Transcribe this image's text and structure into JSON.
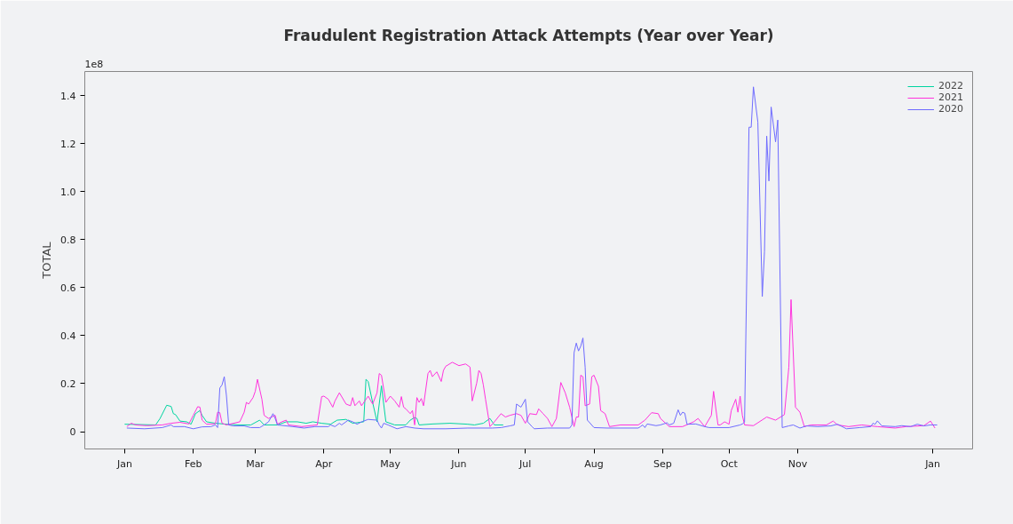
{
  "chart_data": {
    "type": "line",
    "title": "Fraudulent Registration Attack Attempts (Year over Year)",
    "ylabel": "TOTAL",
    "annotations": [
      "1e8"
    ],
    "xlim": [
      "2021-12-14",
      "2023-01-19"
    ],
    "ylim": [
      -0.072,
      1.5
    ],
    "xticks": [
      {
        "value": "2022-01-01",
        "label": "Jan"
      },
      {
        "value": "2022-02-01",
        "label": "Feb"
      },
      {
        "value": "2022-03-01",
        "label": "Mar"
      },
      {
        "value": "2022-04-01",
        "label": "Apr"
      },
      {
        "value": "2022-05-01",
        "label": "May"
      },
      {
        "value": "2022-06-01",
        "label": "Jun"
      },
      {
        "value": "2022-07-01",
        "label": "Jul"
      },
      {
        "value": "2022-08-01",
        "label": "Aug"
      },
      {
        "value": "2022-09-01",
        "label": "Sep"
      },
      {
        "value": "2022-10-01",
        "label": "Oct"
      },
      {
        "value": "2022-11-01",
        "label": "Nov"
      },
      {
        "value": "2023-01-01",
        "label": "Jan"
      }
    ],
    "yticks": [
      {
        "value": 0,
        "label": "0"
      },
      {
        "value": 0.2,
        "label": "0.2"
      },
      {
        "value": 0.4,
        "label": "0.4"
      },
      {
        "value": 0.6,
        "label": "0.6"
      },
      {
        "value": 0.8,
        "label": "0.8"
      },
      {
        "value": 1,
        "label": "1.0"
      },
      {
        "value": 1.2,
        "label": "1.2"
      },
      {
        "value": 1.4,
        "label": "1.4"
      }
    ],
    "grid": false,
    "legend": "top right",
    "marker": "none",
    "line_style": "solid",
    "series": [
      {
        "name": "2022",
        "color": "#00d4a0",
        "x": [
          "2022-01-01",
          "2022-01-15",
          "2022-01-17",
          "2022-01-20",
          "2022-01-22",
          "2022-01-23",
          "2022-01-24",
          "2022-01-26",
          "2022-01-29",
          "2022-01-31",
          "2022-02-02",
          "2022-02-04",
          "2022-02-05",
          "2022-02-07",
          "2022-02-11",
          "2022-02-16",
          "2022-02-22",
          "2022-02-27",
          "2022-03-03",
          "2022-03-05",
          "2022-03-11",
          "2022-03-15",
          "2022-03-20",
          "2022-03-24",
          "2022-03-27",
          "2022-03-31",
          "2022-04-04",
          "2022-04-07",
          "2022-04-11",
          "2022-04-14",
          "2022-04-19",
          "2022-04-20",
          "2022-04-21",
          "2022-04-23",
          "2022-04-25",
          "2022-04-27",
          "2022-04-29",
          "2022-05-03",
          "2022-05-08",
          "2022-05-10",
          "2022-05-12",
          "2022-05-13",
          "2022-05-14",
          "2022-05-20",
          "2022-05-28",
          "2022-06-05",
          "2022-06-08",
          "2022-06-12",
          "2022-06-15",
          "2022-06-17",
          "2022-06-21"
        ],
        "values": [
          0.031,
          0.028,
          0.055,
          0.11,
          0.105,
          0.075,
          0.071,
          0.044,
          0.041,
          0.031,
          0.075,
          0.088,
          0.068,
          0.041,
          0.035,
          0.031,
          0.028,
          0.028,
          0.048,
          0.028,
          0.028,
          0.041,
          0.041,
          0.035,
          0.041,
          0.035,
          0.031,
          0.048,
          0.051,
          0.035,
          0.041,
          0.218,
          0.209,
          0.122,
          0.041,
          0.191,
          0.041,
          0.028,
          0.028,
          0.048,
          0.059,
          0.055,
          0.028,
          0.032,
          0.035,
          0.031,
          0.028,
          0.035,
          0.055,
          0.028,
          0.028
        ]
      },
      {
        "name": "2021",
        "color": "#ff33dd",
        "x": [
          "2022-01-02",
          "2022-01-04",
          "2022-01-06",
          "2022-01-11",
          "2022-01-18",
          "2022-01-22",
          "2022-01-26",
          "2022-01-30",
          "2022-02-01",
          "2022-02-03",
          "2022-02-04",
          "2022-02-05",
          "2022-02-07",
          "2022-02-11",
          "2022-02-12",
          "2022-02-13",
          "2022-02-14",
          "2022-02-16",
          "2022-02-22",
          "2022-02-24",
          "2022-02-25",
          "2022-02-26",
          "2022-02-28",
          "2022-03-01",
          "2022-03-02",
          "2022-03-04",
          "2022-03-05",
          "2022-03-07",
          "2022-03-10",
          "2022-03-11",
          "2022-03-13",
          "2022-03-15",
          "2022-03-16",
          "2022-03-22",
          "2022-03-29",
          "2022-03-31",
          "2022-04-01",
          "2022-04-03",
          "2022-04-05",
          "2022-04-06",
          "2022-04-08",
          "2022-04-11",
          "2022-04-13",
          "2022-04-14",
          "2022-04-15",
          "2022-04-17",
          "2022-04-18",
          "2022-04-21",
          "2022-04-23",
          "2022-04-25",
          "2022-04-26",
          "2022-04-27",
          "2022-04-29",
          "2022-05-01",
          "2022-05-03",
          "2022-05-05",
          "2022-05-06",
          "2022-05-07",
          "2022-05-08",
          "2022-05-10",
          "2022-05-11",
          "2022-05-12",
          "2022-05-13",
          "2022-05-14",
          "2022-05-15",
          "2022-05-16",
          "2022-05-18",
          "2022-05-19",
          "2022-05-20",
          "2022-05-22",
          "2022-05-24",
          "2022-05-25",
          "2022-05-26",
          "2022-05-29",
          "2022-06-01",
          "2022-06-04",
          "2022-06-06",
          "2022-06-07",
          "2022-06-09",
          "2022-06-10",
          "2022-06-11",
          "2022-06-12",
          "2022-06-13",
          "2022-06-15",
          "2022-06-17",
          "2022-06-20",
          "2022-06-22",
          "2022-06-24",
          "2022-06-27",
          "2022-06-29",
          "2022-07-01",
          "2022-07-03",
          "2022-07-06",
          "2022-07-07",
          "2022-07-09",
          "2022-07-11",
          "2022-07-13",
          "2022-07-15",
          "2022-07-17",
          "2022-07-19",
          "2022-07-21",
          "2022-07-23",
          "2022-07-24",
          "2022-07-25",
          "2022-07-26",
          "2022-07-27",
          "2022-07-28",
          "2022-07-30",
          "2022-07-31",
          "2022-08-01",
          "2022-08-03",
          "2022-08-04",
          "2022-08-06",
          "2022-08-08",
          "2022-08-13",
          "2022-08-21",
          "2022-08-24",
          "2022-08-27",
          "2022-08-30",
          "2022-08-31",
          "2022-09-04",
          "2022-09-10",
          "2022-09-15",
          "2022-09-17",
          "2022-09-20",
          "2022-09-23",
          "2022-09-24",
          "2022-09-26",
          "2022-09-27",
          "2022-09-29",
          "2022-10-01",
          "2022-10-02",
          "2022-10-04",
          "2022-10-05",
          "2022-10-06",
          "2022-10-07",
          "2022-10-08",
          "2022-10-12",
          "2022-10-18",
          "2022-10-22",
          "2022-10-26",
          "2022-10-28",
          "2022-10-29",
          "2022-10-31",
          "2022-11-02",
          "2022-11-04",
          "2022-11-07",
          "2022-11-14",
          "2022-11-17",
          "2022-11-19",
          "2022-11-24",
          "2022-11-30",
          "2022-12-07",
          "2022-12-15",
          "2022-12-20",
          "2022-12-28",
          "2022-12-31",
          "2023-01-02"
        ],
        "values": [
          0.021,
          0.035,
          0.028,
          0.025,
          0.028,
          0.035,
          0.039,
          0.032,
          0.068,
          0.104,
          0.102,
          0.048,
          0.031,
          0.033,
          0.081,
          0.079,
          0.035,
          0.028,
          0.041,
          0.081,
          0.122,
          0.115,
          0.142,
          0.168,
          0.218,
          0.135,
          0.068,
          0.055,
          0.068,
          0.031,
          0.041,
          0.048,
          0.028,
          0.021,
          0.028,
          0.146,
          0.148,
          0.135,
          0.102,
          0.128,
          0.162,
          0.115,
          0.108,
          0.142,
          0.108,
          0.128,
          0.108,
          0.148,
          0.115,
          0.162,
          0.242,
          0.235,
          0.122,
          0.148,
          0.128,
          0.102,
          0.146,
          0.102,
          0.095,
          0.075,
          0.088,
          0.028,
          0.142,
          0.122,
          0.138,
          0.108,
          0.242,
          0.255,
          0.229,
          0.249,
          0.209,
          0.255,
          0.272,
          0.289,
          0.275,
          0.282,
          0.269,
          0.128,
          0.202,
          0.255,
          0.242,
          0.195,
          0.135,
          0.021,
          0.041,
          0.075,
          0.061,
          0.068,
          0.075,
          0.068,
          0.035,
          0.075,
          0.071,
          0.095,
          0.075,
          0.055,
          0.021,
          0.055,
          0.205,
          0.162,
          0.102,
          0.021,
          0.061,
          0.061,
          0.235,
          0.229,
          0.108,
          0.115,
          0.229,
          0.235,
          0.189,
          0.088,
          0.075,
          0.021,
          0.028,
          0.028,
          0.048,
          0.079,
          0.075,
          0.055,
          0.021,
          0.021,
          0.041,
          0.055,
          0.021,
          0.068,
          0.168,
          0.028,
          0.028,
          0.041,
          0.031,
          0.088,
          0.135,
          0.081,
          0.148,
          0.068,
          0.028,
          0.025,
          0.061,
          0.048,
          0.071,
          0.269,
          0.55,
          0.102,
          0.081,
          0.021,
          0.028,
          0.028,
          0.044,
          0.028,
          0.021,
          0.028,
          0.021,
          0.015,
          0.021,
          0.025,
          0.044,
          0.015
        ]
      },
      {
        "name": "2020",
        "color": "#6e6bff",
        "x": [
          "2022-01-02",
          "2022-01-10",
          "2022-01-18",
          "2022-01-22",
          "2022-01-23",
          "2022-01-28",
          "2022-02-01",
          "2022-02-05",
          "2022-02-09",
          "2022-02-11",
          "2022-02-12",
          "2022-02-13",
          "2022-02-14",
          "2022-02-15",
          "2022-02-16",
          "2022-02-17",
          "2022-02-19",
          "2022-02-24",
          "2022-02-27",
          "2022-03-03",
          "2022-03-05",
          "2022-03-07",
          "2022-03-09",
          "2022-03-10",
          "2022-03-11",
          "2022-03-18",
          "2022-03-23",
          "2022-03-28",
          "2022-04-03",
          "2022-04-04",
          "2022-04-06",
          "2022-04-08",
          "2022-04-09",
          "2022-04-12",
          "2022-04-14",
          "2022-04-16",
          "2022-04-18",
          "2022-04-21",
          "2022-04-25",
          "2022-04-26",
          "2022-04-27",
          "2022-04-28",
          "2022-04-30",
          "2022-05-04",
          "2022-05-08",
          "2022-05-12",
          "2022-05-16",
          "2022-05-26",
          "2022-06-05",
          "2022-06-16",
          "2022-06-20",
          "2022-06-24",
          "2022-06-26",
          "2022-06-27",
          "2022-06-29",
          "2022-07-01",
          "2022-07-02",
          "2022-07-04",
          "2022-07-05",
          "2022-07-11",
          "2022-07-21",
          "2022-07-22",
          "2022-07-23",
          "2022-07-24",
          "2022-07-25",
          "2022-07-26",
          "2022-07-27",
          "2022-07-28",
          "2022-07-29",
          "2022-08-01",
          "2022-08-07",
          "2022-08-21",
          "2022-08-22",
          "2022-08-23",
          "2022-08-24",
          "2022-08-25",
          "2022-08-29",
          "2022-08-31",
          "2022-09-03",
          "2022-09-04",
          "2022-09-06",
          "2022-09-08",
          "2022-09-09",
          "2022-09-10",
          "2022-09-11",
          "2022-09-12",
          "2022-09-16",
          "2022-09-20",
          "2022-09-22",
          "2022-10-01",
          "2022-10-06",
          "2022-10-07",
          "2022-10-08",
          "2022-10-10",
          "2022-10-11",
          "2022-10-12",
          "2022-10-14",
          "2022-10-16",
          "2022-10-17",
          "2022-10-18",
          "2022-10-19",
          "2022-10-20",
          "2022-10-22",
          "2022-10-23",
          "2022-10-25",
          "2022-10-28",
          "2022-10-30",
          "2022-11-02",
          "2022-11-05",
          "2022-11-10",
          "2022-11-16",
          "2022-11-19",
          "2022-11-23",
          "2022-11-29",
          "2022-12-04",
          "2022-12-05",
          "2022-12-06",
          "2022-12-07",
          "2022-12-09",
          "2022-12-15",
          "2022-12-18",
          "2022-12-22",
          "2022-12-25",
          "2022-12-28",
          "2022-12-31",
          "2023-01-03"
        ],
        "values": [
          0.015,
          0.012,
          0.017,
          0.028,
          0.021,
          0.021,
          0.012,
          0.02,
          0.021,
          0.028,
          0.017,
          0.182,
          0.195,
          0.229,
          0.148,
          0.028,
          0.024,
          0.024,
          0.017,
          0.017,
          0.028,
          0.041,
          0.075,
          0.055,
          0.028,
          0.021,
          0.015,
          0.021,
          0.021,
          0.028,
          0.021,
          0.035,
          0.028,
          0.048,
          0.041,
          0.031,
          0.041,
          0.051,
          0.048,
          0.028,
          0.015,
          0.035,
          0.028,
          0.012,
          0.021,
          0.015,
          0.012,
          0.012,
          0.015,
          0.015,
          0.017,
          0.024,
          0.028,
          0.115,
          0.102,
          0.135,
          0.041,
          0.021,
          0.012,
          0.015,
          0.015,
          0.028,
          0.329,
          0.369,
          0.336,
          0.356,
          0.39,
          0.269,
          0.048,
          0.017,
          0.015,
          0.015,
          0.021,
          0.028,
          0.017,
          0.032,
          0.025,
          0.028,
          0.037,
          0.028,
          0.035,
          0.091,
          0.068,
          0.081,
          0.077,
          0.031,
          0.032,
          0.021,
          0.017,
          0.017,
          0.028,
          0.032,
          0.04,
          1.268,
          1.268,
          1.436,
          1.29,
          0.563,
          0.75,
          1.231,
          1.044,
          1.352,
          1.207,
          1.298,
          0.017,
          0.024,
          0.028,
          0.015,
          0.024,
          0.021,
          0.024,
          0.031,
          0.012,
          0.017,
          0.021,
          0.035,
          0.031,
          0.045,
          0.024,
          0.021,
          0.025,
          0.021,
          0.031,
          0.024,
          0.028,
          0.028
        ]
      }
    ]
  }
}
